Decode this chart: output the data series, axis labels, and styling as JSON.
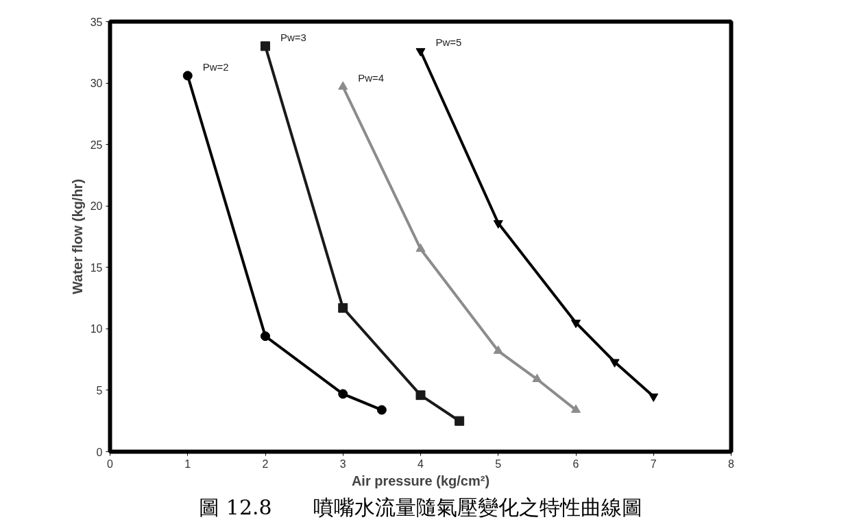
{
  "chart_data": {
    "type": "line",
    "title": "圖 12.8　　噴嘴水流量隨氣壓變化之特性曲線圖",
    "xlabel": "Air pressure (kg/cm²)",
    "ylabel": "Water flow (kg/hr)",
    "xlim": [
      0,
      8
    ],
    "xticks": [
      0,
      1,
      2,
      3,
      4,
      5,
      6,
      7,
      8
    ],
    "ylim": [
      0,
      35
    ],
    "yticks": [
      0,
      5,
      10,
      15,
      20,
      25,
      30,
      35
    ],
    "grid": false,
    "line_style": "solid",
    "series": [
      {
        "name": "Pw=2",
        "color": "#000000",
        "marker": "circle",
        "x": [
          1,
          2,
          3,
          3.5
        ],
        "values": [
          30.6,
          9.4,
          4.7,
          3.4
        ]
      },
      {
        "name": "Pw=3",
        "color": "#1a1a1a",
        "marker": "square",
        "x": [
          2,
          3,
          4,
          4.5
        ],
        "values": [
          33.0,
          11.7,
          4.6,
          2.5
        ]
      },
      {
        "name": "Pw=4",
        "color": "#8c8c8c",
        "marker": "triangle",
        "x": [
          3,
          4,
          5,
          5.5,
          6
        ],
        "values": [
          29.7,
          16.5,
          8.2,
          5.9,
          3.4
        ]
      },
      {
        "name": "Pw=5",
        "color": "#000000",
        "marker": "triangle_down",
        "x": [
          4,
          5,
          6,
          6.5,
          7
        ],
        "values": [
          32.6,
          18.6,
          10.5,
          7.3,
          4.5
        ]
      }
    ]
  }
}
